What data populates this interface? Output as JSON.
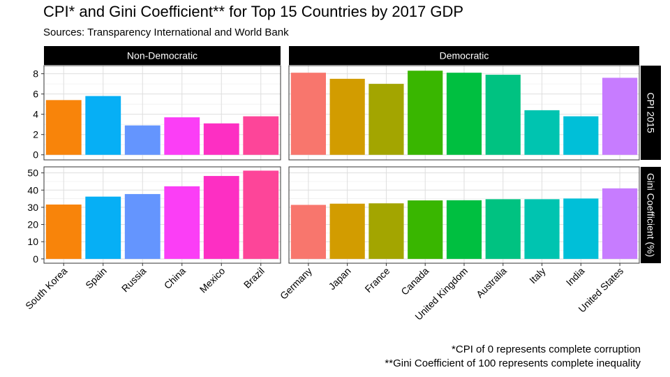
{
  "title": "CPI* and Gini Coefficient** for Top 15 Countries by 2017 GDP",
  "subtitle": "Sources: Transparency International and World Bank",
  "captions": [
    "*CPI of 0 represents complete corruption",
    "**Gini Coefficient of 100 represents complete inequality"
  ],
  "chart_data": {
    "type": "bar",
    "layout": "facet grid",
    "facet_columns": [
      "Non-Democratic",
      "Democratic"
    ],
    "facet_rows": [
      "CPI 2015",
      "Gini Coefficient (%)"
    ],
    "grid": true,
    "colors": {
      "South Korea": "#f8840a",
      "Spain": "#06aff5",
      "Russia": "#6495fe",
      "China": "#fb3ef6",
      "Mexico": "#fd2fc3",
      "Brazil": "#fd4599",
      "Germany": "#f8766d",
      "Japan": "#d29c00",
      "France": "#a3a500",
      "Canada": "#39b600",
      "United Kingdom": "#00bf40",
      "Australia": "#00c281",
      "Italy": "#00c4b0",
      "India": "#00bfd8",
      "United States": "#c77cff"
    },
    "panels": [
      {
        "column": "Non-Democratic",
        "categories": [
          "South Korea",
          "Spain",
          "Russia",
          "China",
          "Mexico",
          "Brazil"
        ],
        "cpi": [
          5.4,
          5.8,
          2.9,
          3.7,
          3.1,
          3.8
        ],
        "gini": [
          31.6,
          36.2,
          37.7,
          42.2,
          48.2,
          51.3
        ]
      },
      {
        "column": "Democratic",
        "categories": [
          "Germany",
          "Japan",
          "France",
          "Canada",
          "United Kingdom",
          "Australia",
          "Italy",
          "India",
          "United States"
        ],
        "cpi": [
          8.1,
          7.5,
          7.0,
          8.3,
          8.1,
          7.9,
          4.4,
          3.8,
          7.6
        ],
        "gini": [
          31.4,
          32.1,
          32.3,
          34.0,
          34.1,
          34.7,
          34.7,
          35.1,
          41.0
        ]
      }
    ],
    "cpi_axis": {
      "ylim": [
        -0.5,
        8.8
      ],
      "ticks": [
        "0",
        "2",
        "4",
        "6",
        "8"
      ]
    },
    "gini_axis": {
      "ylim": [
        -2.5,
        53.5
      ],
      "ticks": [
        "0",
        "10",
        "20",
        "30",
        "40",
        "50"
      ]
    }
  }
}
